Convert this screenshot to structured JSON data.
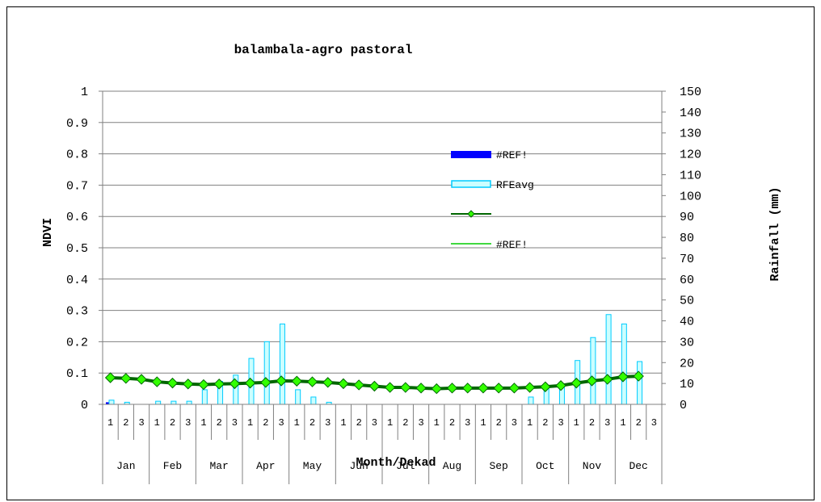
{
  "chart_data": {
    "type": "bar+line",
    "title": "balambala-agro pastoral",
    "xlabel": "Month/Dekad",
    "ylabel": "NDVI",
    "y2label": "Rainfall (mm)",
    "ylim": [
      0,
      1
    ],
    "y2lim": [
      0,
      150
    ],
    "yticks": [
      "0",
      "0.1",
      "0.2",
      "0.3",
      "0.4",
      "0.5",
      "0.6",
      "0.7",
      "0.8",
      "0.9",
      "1"
    ],
    "y2ticks": [
      "0",
      "10",
      "20",
      "30",
      "40",
      "50",
      "60",
      "70",
      "80",
      "90",
      "100",
      "110",
      "120",
      "130",
      "140",
      "150"
    ],
    "months": [
      "Jan",
      "Feb",
      "Mar",
      "Apr",
      "May",
      "Jun",
      "Jul",
      "Aug",
      "Sep",
      "Oct",
      "Nov",
      "Dec"
    ],
    "dekads": [
      "1",
      "2",
      "3"
    ],
    "grid": true,
    "legend_position": "center-right",
    "series": [
      {
        "name": "#REF!",
        "kind": "bar",
        "axis": "y2",
        "color": "#0000ff",
        "values": [
          1,
          0,
          0,
          0,
          0,
          0,
          0,
          0,
          0,
          0,
          0,
          0,
          0,
          0,
          0,
          0,
          0,
          0,
          0,
          0,
          0,
          0,
          0,
          0,
          0,
          0,
          0,
          0,
          0,
          0,
          0,
          0,
          0,
          0,
          0,
          0
        ]
      },
      {
        "name": "RFEavg",
        "kind": "bar",
        "axis": "y2",
        "color": "#00ccff",
        "fill": "#ccffff",
        "values": [
          2,
          1,
          0,
          1.5,
          1.5,
          1.5,
          7,
          11,
          14,
          22,
          30,
          38.5,
          7,
          3.5,
          1,
          0,
          0,
          0,
          0,
          0,
          0,
          0,
          0,
          0,
          0,
          0,
          0,
          3.5,
          7.5,
          9.5,
          21,
          32,
          43,
          38.5,
          20.5,
          0
        ]
      },
      {
        "name": "",
        "kind": "line",
        "axis": "y",
        "color": "#006600",
        "marker": "diamond",
        "marker_color": "#33ff00",
        "values": [
          0.085,
          0.083,
          0.08,
          0.072,
          0.068,
          0.065,
          0.063,
          0.065,
          0.066,
          0.068,
          0.07,
          0.075,
          0.074,
          0.072,
          0.07,
          0.066,
          0.062,
          0.058,
          0.054,
          0.054,
          0.052,
          0.05,
          0.052,
          0.052,
          0.052,
          0.052,
          0.052,
          0.054,
          0.056,
          0.06,
          0.068,
          0.075,
          0.08,
          0.088,
          0.09,
          null
        ]
      },
      {
        "name": "#REF!",
        "kind": "line",
        "axis": "y",
        "color": "#00cc00",
        "values": []
      }
    ]
  }
}
